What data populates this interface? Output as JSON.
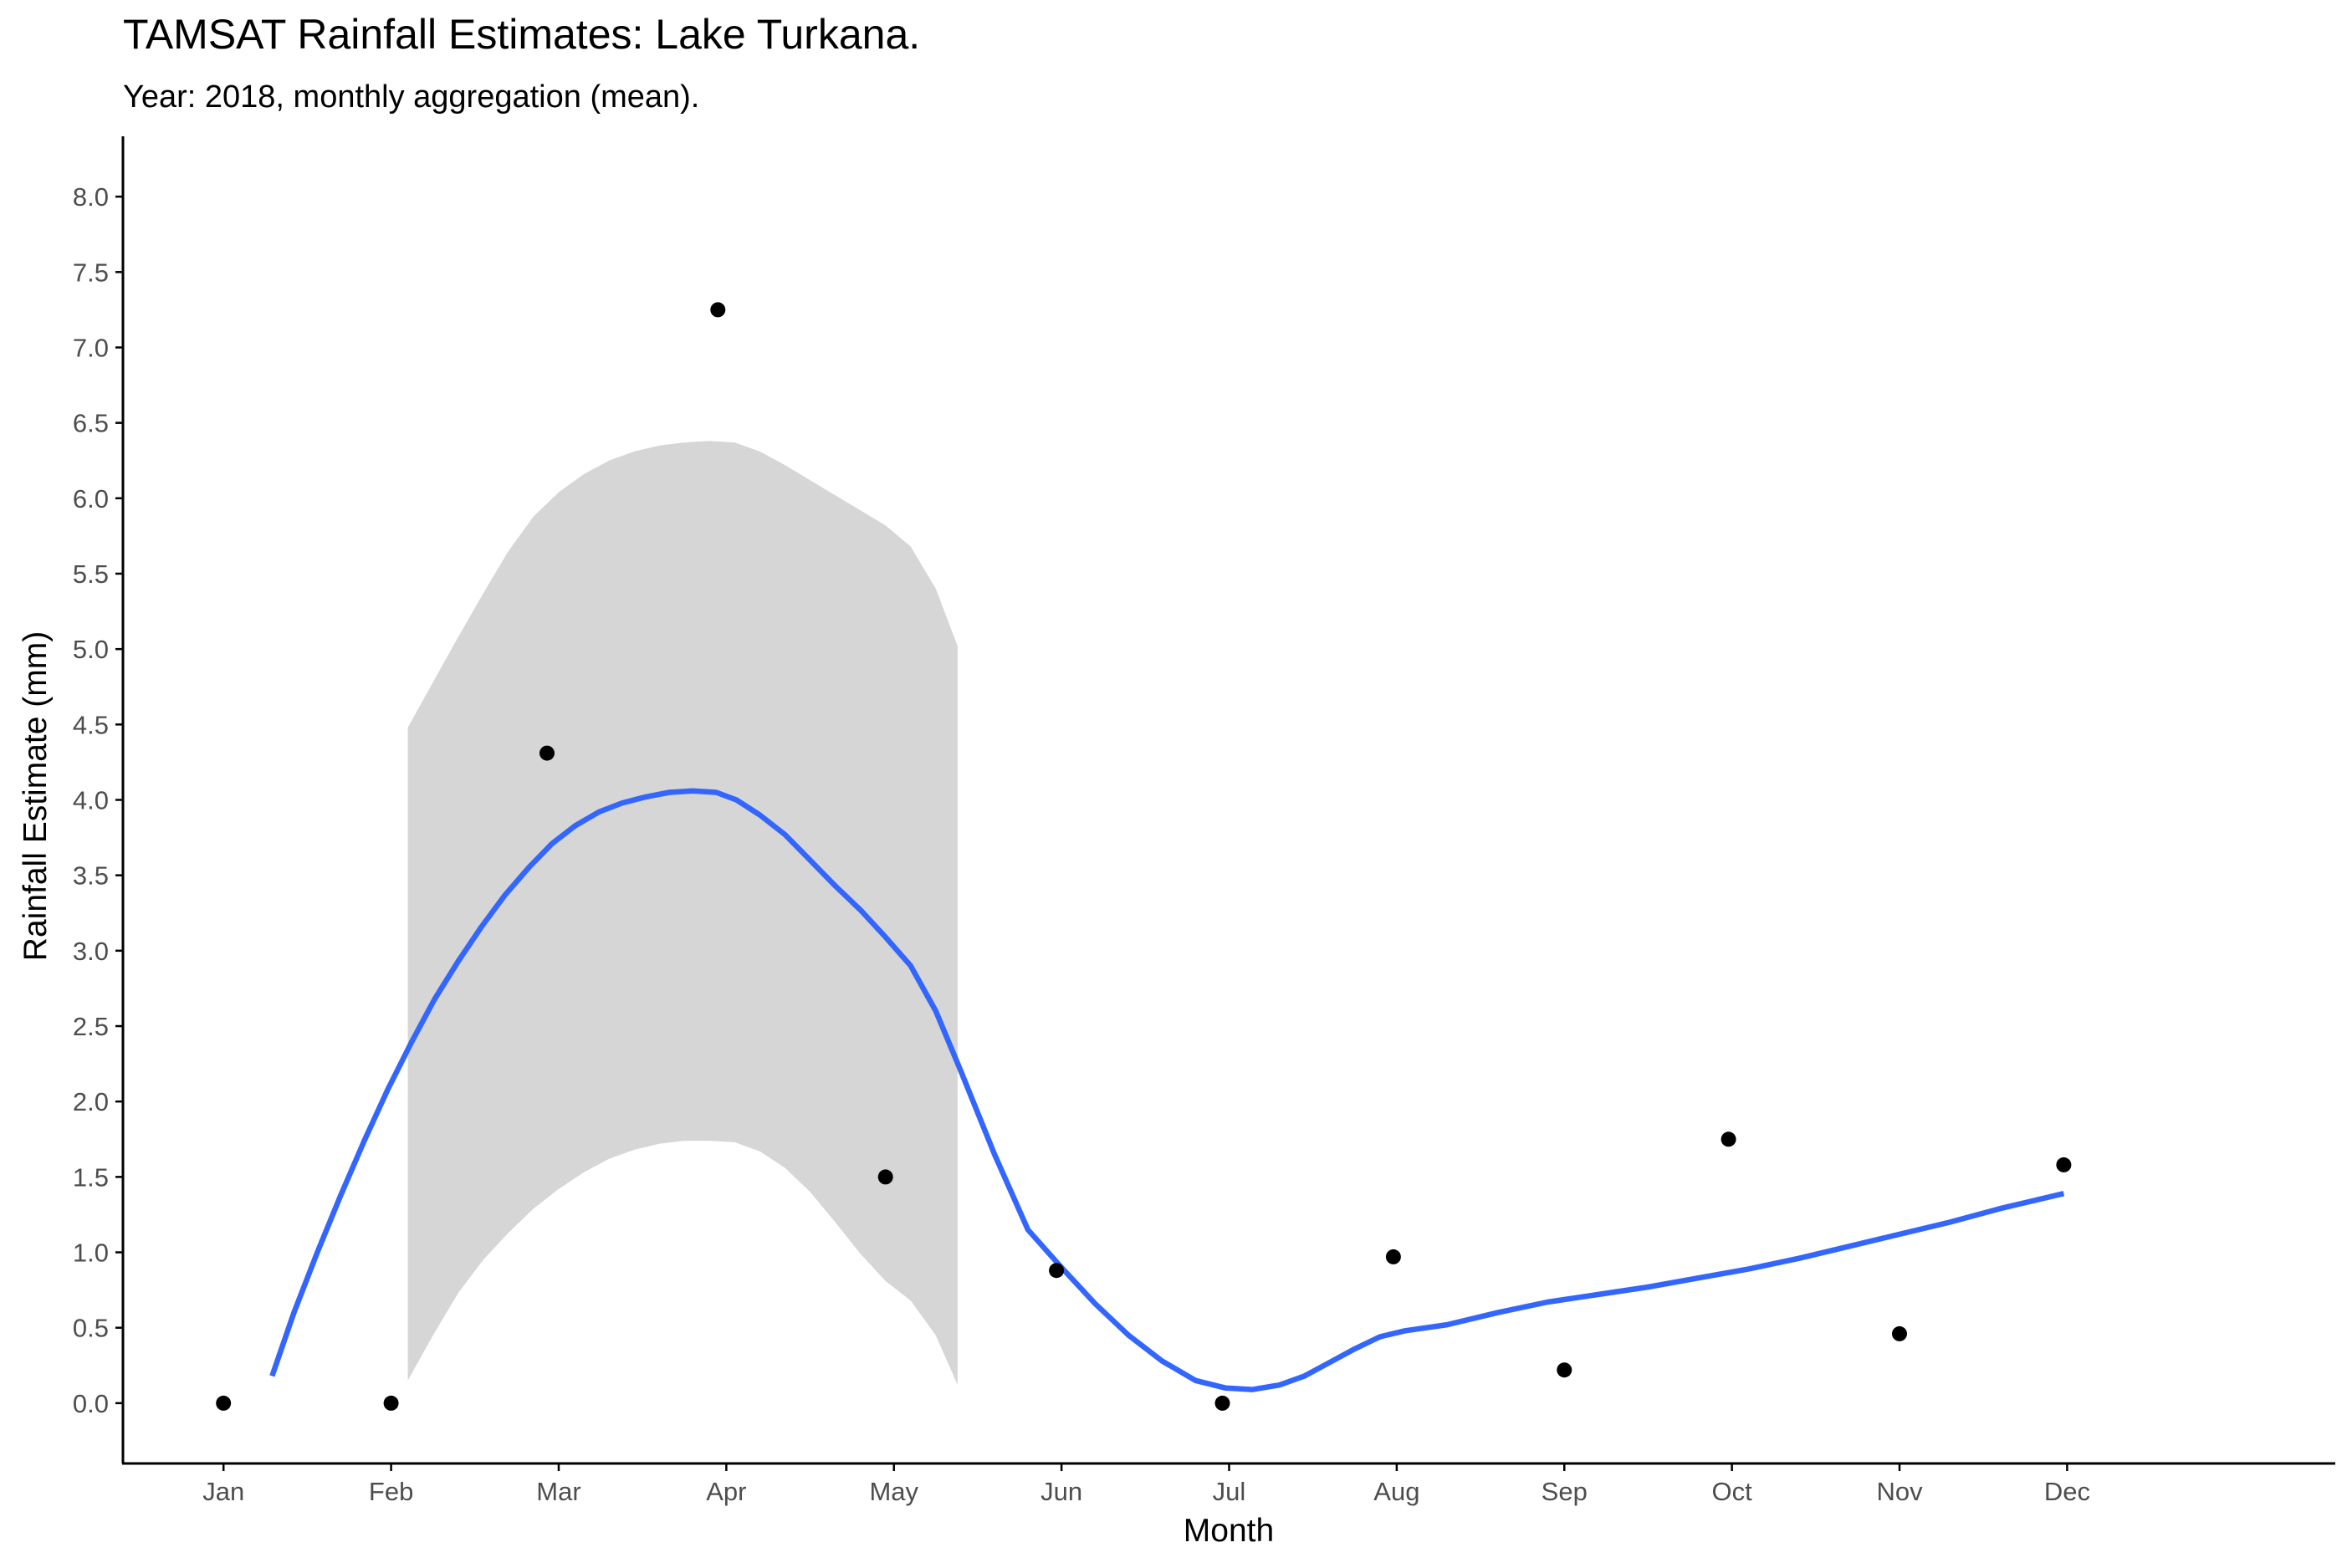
{
  "chart_data": {
    "type": "scatter",
    "title": "TAMSAT Rainfall Estimates: Lake Turkana.",
    "subtitle": "Year: 2018, monthly aggregation (mean).",
    "xlabel": "Month",
    "ylabel": "Rainfall Estimate (mm)",
    "x_categories": [
      "Jan",
      "Feb",
      "Mar",
      "Apr",
      "May",
      "Jun",
      "Jul",
      "Aug",
      "Sep",
      "Oct",
      "Nov",
      "Dec"
    ],
    "x_range": [
      0.4,
      13.6
    ],
    "ylim": [
      -0.4,
      8.4
    ],
    "y_ticks": [
      "0.0",
      "0.5",
      "1.0",
      "1.5",
      "2.0",
      "2.5",
      "3.0",
      "3.5",
      "4.0",
      "4.5",
      "5.0",
      "5.5",
      "6.0",
      "6.5",
      "7.0",
      "7.5",
      "8.0"
    ],
    "grid": false,
    "colors": {
      "points": "#000000",
      "smooth": "#3366FF",
      "ribbon": "#d6d6d6",
      "axis": "#000000",
      "tick_text": "#4d4d4d"
    },
    "points": [
      {
        "x": 1,
        "y": 0.0
      },
      {
        "x": 2,
        "y": 0.0
      },
      {
        "x": 2.93,
        "y": 4.31
      },
      {
        "x": 3.95,
        "y": 7.25
      },
      {
        "x": 4.95,
        "y": 1.5
      },
      {
        "x": 5.97,
        "y": 0.88
      },
      {
        "x": 6.96,
        "y": 0.0
      },
      {
        "x": 7.98,
        "y": 0.97
      },
      {
        "x": 9.0,
        "y": 0.22
      },
      {
        "x": 9.98,
        "y": 1.75
      },
      {
        "x": 11.0,
        "y": 0.46
      },
      {
        "x": 11.98,
        "y": 1.58
      }
    ],
    "smooth_line": [
      {
        "x": 1.29,
        "y": 0.18
      },
      {
        "x": 1.42,
        "y": 0.6
      },
      {
        "x": 1.56,
        "y": 1.0
      },
      {
        "x": 1.7,
        "y": 1.38
      },
      {
        "x": 1.84,
        "y": 1.74
      },
      {
        "x": 1.98,
        "y": 2.08
      },
      {
        "x": 2.12,
        "y": 2.39
      },
      {
        "x": 2.26,
        "y": 2.68
      },
      {
        "x": 2.4,
        "y": 2.93
      },
      {
        "x": 2.54,
        "y": 3.16
      },
      {
        "x": 2.68,
        "y": 3.37
      },
      {
        "x": 2.82,
        "y": 3.55
      },
      {
        "x": 2.96,
        "y": 3.71
      },
      {
        "x": 3.1,
        "y": 3.83
      },
      {
        "x": 3.24,
        "y": 3.92
      },
      {
        "x": 3.38,
        "y": 3.98
      },
      {
        "x": 3.52,
        "y": 4.02
      },
      {
        "x": 3.66,
        "y": 4.05
      },
      {
        "x": 3.8,
        "y": 4.06
      },
      {
        "x": 3.94,
        "y": 4.05
      },
      {
        "x": 4.06,
        "y": 4.0
      },
      {
        "x": 4.2,
        "y": 3.9
      },
      {
        "x": 4.35,
        "y": 3.77
      },
      {
        "x": 4.5,
        "y": 3.6
      },
      {
        "x": 4.65,
        "y": 3.43
      },
      {
        "x": 4.8,
        "y": 3.27
      },
      {
        "x": 4.95,
        "y": 3.09
      },
      {
        "x": 5.1,
        "y": 2.9
      },
      {
        "x": 5.25,
        "y": 2.6
      },
      {
        "x": 5.4,
        "y": 2.2
      },
      {
        "x": 5.6,
        "y": 1.65
      },
      {
        "x": 5.8,
        "y": 1.15
      },
      {
        "x": 6.0,
        "y": 0.9
      },
      {
        "x": 6.2,
        "y": 0.66
      },
      {
        "x": 6.4,
        "y": 0.45
      },
      {
        "x": 6.6,
        "y": 0.28
      },
      {
        "x": 6.8,
        "y": 0.15
      },
      {
        "x": 6.98,
        "y": 0.1
      },
      {
        "x": 7.14,
        "y": 0.09
      },
      {
        "x": 7.3,
        "y": 0.12
      },
      {
        "x": 7.45,
        "y": 0.18
      },
      {
        "x": 7.6,
        "y": 0.27
      },
      {
        "x": 7.75,
        "y": 0.36
      },
      {
        "x": 7.9,
        "y": 0.44
      },
      {
        "x": 8.05,
        "y": 0.48
      },
      {
        "x": 8.3,
        "y": 0.52
      },
      {
        "x": 8.6,
        "y": 0.6
      },
      {
        "x": 8.9,
        "y": 0.67
      },
      {
        "x": 9.2,
        "y": 0.72
      },
      {
        "x": 9.5,
        "y": 0.77
      },
      {
        "x": 9.8,
        "y": 0.83
      },
      {
        "x": 10.1,
        "y": 0.89
      },
      {
        "x": 10.4,
        "y": 0.96
      },
      {
        "x": 10.7,
        "y": 1.04
      },
      {
        "x": 11.0,
        "y": 1.12
      },
      {
        "x": 11.3,
        "y": 1.2
      },
      {
        "x": 11.6,
        "y": 1.29
      },
      {
        "x": 11.98,
        "y": 1.39
      }
    ],
    "confidence_band": [
      {
        "x": 2.1,
        "lower": 0.15,
        "upper": 4.48
      },
      {
        "x": 2.25,
        "lower": 0.45,
        "upper": 4.78
      },
      {
        "x": 2.4,
        "lower": 0.73,
        "upper": 5.08
      },
      {
        "x": 2.55,
        "lower": 0.95,
        "upper": 5.37
      },
      {
        "x": 2.7,
        "lower": 1.13,
        "upper": 5.65
      },
      {
        "x": 2.85,
        "lower": 1.29,
        "upper": 5.88
      },
      {
        "x": 3.0,
        "lower": 1.42,
        "upper": 6.04
      },
      {
        "x": 3.15,
        "lower": 1.53,
        "upper": 6.16
      },
      {
        "x": 3.3,
        "lower": 1.62,
        "upper": 6.25
      },
      {
        "x": 3.45,
        "lower": 1.68,
        "upper": 6.31
      },
      {
        "x": 3.6,
        "lower": 1.72,
        "upper": 6.35
      },
      {
        "x": 3.75,
        "lower": 1.74,
        "upper": 6.37
      },
      {
        "x": 3.9,
        "lower": 1.74,
        "upper": 6.38
      },
      {
        "x": 4.05,
        "lower": 1.73,
        "upper": 6.37
      },
      {
        "x": 4.2,
        "lower": 1.67,
        "upper": 6.31
      },
      {
        "x": 4.35,
        "lower": 1.56,
        "upper": 6.22
      },
      {
        "x": 4.5,
        "lower": 1.4,
        "upper": 6.12
      },
      {
        "x": 4.65,
        "lower": 1.2,
        "upper": 6.02
      },
      {
        "x": 4.8,
        "lower": 0.99,
        "upper": 5.92
      },
      {
        "x": 4.95,
        "lower": 0.81,
        "upper": 5.82
      },
      {
        "x": 5.1,
        "lower": 0.68,
        "upper": 5.68
      },
      {
        "x": 5.25,
        "lower": 0.45,
        "upper": 5.4
      },
      {
        "x": 5.38,
        "lower": 0.12,
        "upper": 5.02
      }
    ]
  }
}
